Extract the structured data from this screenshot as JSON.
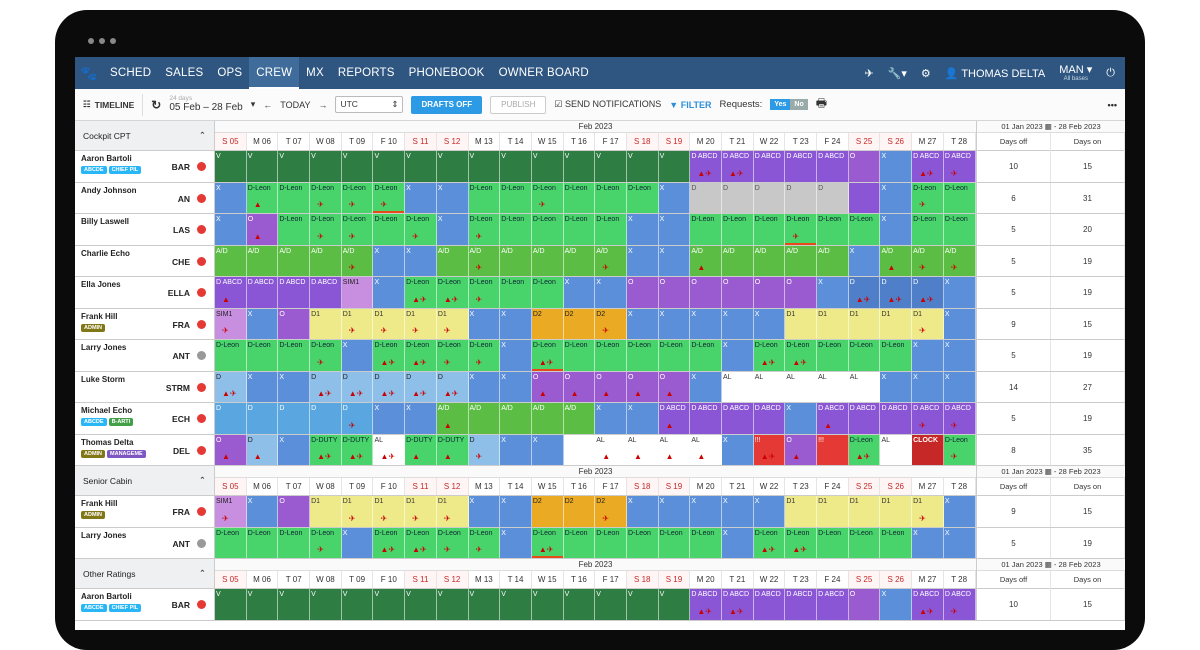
{
  "nav": {
    "items": [
      "SCHED",
      "SALES",
      "OPS",
      "CREW",
      "MX",
      "REPORTS",
      "PHONEBOOK",
      "OWNER BOARD"
    ],
    "active": "CREW",
    "user": "THOMAS DELTA",
    "base": "MAN",
    "base_sub": "All bases"
  },
  "toolbar": {
    "timeline_label": "TIMELINE",
    "range_days": "24 days",
    "range": "05 Feb – 28 Feb",
    "today": "TODAY",
    "timezone": "UTC",
    "drafts": "DRAFTS OFF",
    "publish": "PUBLISH",
    "send_notifications": "SEND NOTIFICATIONS",
    "filter": "FILTER",
    "requests_label": "Requests:",
    "yes": "Yes",
    "no": "No"
  },
  "month_label": "Feb 2023",
  "days": [
    "S 05",
    "M 06",
    "T 07",
    "W 08",
    "T 09",
    "F 10",
    "S 11",
    "S 12",
    "M 13",
    "T 14",
    "W 15",
    "T 16",
    "F 17",
    "S 18",
    "S 19",
    "M 20",
    "T 21",
    "W 22",
    "T 23",
    "F 24",
    "S 25",
    "S 26",
    "M 27",
    "T 28"
  ],
  "weekend_idx": [
    0,
    6,
    7,
    13,
    14,
    20,
    21
  ],
  "summary": {
    "range": "01 Jan 2023 ▦ - 28 Feb 2023",
    "off": "Days off",
    "on": "Days on"
  },
  "sections": [
    {
      "title": "Cockpit CPT",
      "rows": [
        {
          "name": "Aaron Bartoli",
          "code": "BAR",
          "dot": "red",
          "tags": [
            [
              "ABCDE",
              "t-abcde"
            ],
            [
              "CHIEF PIL",
              "t-chief"
            ]
          ],
          "off": "10",
          "on": "15",
          "cells": [
            "V|V",
            "V|V",
            "V|V",
            "V|V",
            "V|V",
            "V|V",
            "V|V",
            "V|V",
            "V|V",
            "V|V",
            "V|V",
            "V|V",
            "V|V",
            "V|V",
            "V|V",
            "DB|D ABCD|▲✈",
            "DB|D ABCD|▲✈",
            "DB|D ABCD",
            "DB|D ABCD",
            "DB|D ABCD",
            "O|O",
            "X|X",
            "DB|D ABCD|▲✈",
            "DB|D ABCD|✈"
          ]
        },
        {
          "name": "Andy Johnson",
          "code": "AN",
          "dot": "red",
          "tags": [],
          "off": "6",
          "on": "31",
          "cells": [
            "X|X",
            "DL|D-Leon|▲",
            "DL|D-Leon",
            "DL|D-Leon|✈",
            "DL|D-Leon|✈",
            "DL|D-Leon|✈|u",
            "X|X",
            "X|X",
            "DL|D-Leon",
            "DL|D-Leon",
            "DL|D-Leon|✈",
            "DL|D-Leon",
            "DL|D-Leon",
            "DL|D-Leon",
            "X|X",
            "GR|D",
            "GR|D",
            "GR|D",
            "GR|D",
            "GR|D",
            "DB|",
            "X|X",
            "DL|D-Leon|✈",
            "DL|D-Leon"
          ]
        },
        {
          "name": "Billy Laswell",
          "code": "LAS",
          "dot": "red",
          "tags": [],
          "off": "5",
          "on": "20",
          "cells": [
            "X|X",
            "O|O|▲",
            "DL|D-Leon",
            "DL|D-Leon|✈",
            "DL|D-Leon|✈",
            "DL|D-Leon",
            "DL|D-Leon|✈",
            "X|X",
            "DL|D-Leon|✈",
            "DL|D-Leon",
            "DL|D-Leon",
            "DL|D-Leon",
            "DL|D-Leon",
            "X|X",
            "X|X",
            "DL|D-Leon",
            "DL|D-Leon",
            "DL|D-Leon",
            "DL|D-Leon|✈|u",
            "DL|D-Leon",
            "DL|D-Leon",
            "X|X",
            "DL|D-Leon",
            "DL|D-Leon"
          ]
        },
        {
          "name": "Charlie Echo",
          "code": "CHE",
          "dot": "red",
          "tags": [],
          "off": "5",
          "on": "19",
          "cells": [
            "AD|A/D",
            "AD|A/D",
            "AD|A/D",
            "AD|A/D",
            "AD|A/D|✈",
            "X|X",
            "X|X",
            "AD|A/D",
            "AD|A/D|✈",
            "AD|A/D",
            "AD|A/D",
            "AD|A/D",
            "AD|A/D|✈",
            "X|X",
            "X|X",
            "AD|A/D|▲",
            "AD|A/D",
            "AD|A/D",
            "AD|A/D",
            "AD|A/D",
            "X|X",
            "AD|A/D|▲",
            "AD|A/D|✈",
            "AD|A/D|✈"
          ]
        },
        {
          "name": "Ella Jones",
          "code": "ELLA",
          "dot": "red",
          "tags": [],
          "off": "5",
          "on": "19",
          "cells": [
            "DB|D ABCD|▲",
            "DB|D ABCD",
            "DB|D ABCD",
            "DB|D ABCD",
            "SIM|SIM1",
            "X|X",
            "DL|D-Leon|▲✈",
            "DL|D-Leon|▲✈",
            "DL|D-Leon|✈",
            "DL|D-Leon",
            "DL|D-Leon",
            "X|X",
            "X|X",
            "O|O",
            "O|O",
            "O|O",
            "O|O",
            "O|O",
            "O|O",
            "X|X",
            "DD|D|▲✈",
            "DD|D|▲✈",
            "DD|D|▲✈",
            "X|X"
          ]
        },
        {
          "name": "Frank Hill",
          "code": "FRA",
          "dot": "red",
          "tags": [
            [
              "ADMIN",
              "t-admin"
            ]
          ],
          "off": "9",
          "on": "15",
          "cells": [
            "SIM|SIM1|✈",
            "X|X",
            "O|O",
            "D1|D1",
            "D1|D1|✈",
            "D1|D1|✈",
            "D1|D1|✈",
            "D1|D1|✈",
            "X|X",
            "X|X",
            "D2|D2",
            "D2|D2",
            "D2|D2|✈",
            "X|X",
            "X|X",
            "X|X",
            "X|X",
            "X|X",
            "D1|D1",
            "D1|D1",
            "D1|D1",
            "D1|D1",
            "D1|D1|✈",
            "X|X"
          ]
        },
        {
          "name": "Larry Jones",
          "code": "ANT",
          "dot": "gray",
          "tags": [],
          "off": "5",
          "on": "19",
          "cells": [
            "DL|D-Leon",
            "DL|D-Leon",
            "DL|D-Leon",
            "DL|D-Leon|✈",
            "X|X",
            "DL|D-Leon|▲✈",
            "DL|D-Leon|▲✈",
            "DL|D-Leon|✈",
            "DL|D-Leon|✈",
            "X|X",
            "DL|D-Leon|▲✈|u",
            "DL|D-Leon",
            "DL|D-Leon",
            "DL|D-Leon",
            "DL|D-Leon",
            "DL|D-Leon",
            "X|X",
            "DL|D-Leon|▲✈",
            "DL|D-Leon|▲✈",
            "DL|D-Leon",
            "DL|D-Leon",
            "DL|D-Leon",
            "X|X",
            "X|X"
          ]
        },
        {
          "name": "Luke Storm",
          "code": "STRM",
          "dot": "red",
          "tags": [],
          "off": "14",
          "on": "27",
          "cells": [
            "DT|D|▲✈",
            "X|X",
            "X|X",
            "DT|D|▲✈",
            "DT|D|▲✈",
            "DT|D|▲✈",
            "DT|D|▲✈",
            "DT|D|▲✈",
            "X|X",
            "X|X",
            "O|O|▲",
            "O|O|▲",
            "O|O|▲",
            "O|O|▲",
            "O|O|▲",
            "X|X",
            "AL|AL",
            "AL|AL",
            "AL|AL",
            "AL|AL",
            "AL|AL",
            "X|X",
            "X|X",
            "X|X"
          ]
        },
        {
          "name": "Michael Echo",
          "code": "ECH",
          "dot": "red",
          "tags": [
            [
              "ABCDE",
              "t-abcde"
            ],
            [
              "B-ARTI",
              "t-bart"
            ]
          ],
          "off": "5",
          "on": "19",
          "cells": [
            "D|D",
            "D|D",
            "D|D",
            "D|D",
            "D|D|✈",
            "X|X",
            "X|X",
            "AD|A/D|▲",
            "AD|A/D",
            "AD|A/D",
            "AD|A/D",
            "AD|A/D",
            "X|X",
            "X|X",
            "DB|D ABCD|▲",
            "DB|D ABCD",
            "DB|D ABCD",
            "DB|D ABCD",
            "X|X",
            "DB|D ABCD|▲",
            "DB|D ABCD",
            "DB|D ABCD",
            "DB|D ABCD|✈",
            "DB|D ABCD|✈"
          ]
        },
        {
          "name": "Thomas Delta",
          "code": "DEL",
          "dot": "red",
          "tags": [
            [
              "ADMIN",
              "t-admin"
            ],
            [
              "MANAGEME",
              "t-mgmt"
            ]
          ],
          "off": "8",
          "on": "35",
          "cells": [
            "O|O|▲",
            "DT|D|▲",
            "X|X",
            "DL|D-DUTY|▲✈",
            "DL|D-DUTY|▲✈",
            "AL|AL|▲✈",
            "DL|D-DUTY|▲",
            "DL|D-DUTY|▲",
            "DT|D|✈",
            "X|X",
            "X|X",
            "AL|",
            "AL|AL|▲",
            "AL|AL|▲",
            "AL|AL|▲",
            "AL|AL|▲",
            "X|X",
            "EX|!!!|▲✈",
            "O|O|▲",
            "EX|!!!",
            "DL|D-Leon|▲✈",
            "AL|AL",
            "CL|CLOCK",
            "DL|D-Leon|✈"
          ]
        }
      ]
    },
    {
      "title": "Senior Cabin",
      "rows": [
        {
          "name": "Frank Hill",
          "code": "FRA",
          "dot": "red",
          "tags": [
            [
              "ADMIN",
              "t-admin"
            ]
          ],
          "off": "9",
          "on": "15",
          "cells": [
            "SIM|SIM1|✈",
            "X|X",
            "O|O",
            "D1|D1",
            "D1|D1|✈",
            "D1|D1|✈",
            "D1|D1|✈",
            "D1|D1|✈",
            "X|X",
            "X|X",
            "D2|D2",
            "D2|D2",
            "D2|D2|✈",
            "X|X",
            "X|X",
            "X|X",
            "X|X",
            "X|X",
            "D1|D1",
            "D1|D1",
            "D1|D1",
            "D1|D1",
            "D1|D1|✈",
            "X|X"
          ]
        },
        {
          "name": "Larry Jones",
          "code": "ANT",
          "dot": "gray",
          "tags": [],
          "off": "5",
          "on": "19",
          "cells": [
            "DL|D-Leon",
            "DL|D-Leon",
            "DL|D-Leon",
            "DL|D-Leon|✈",
            "X|X",
            "DL|D-Leon|▲✈",
            "DL|D-Leon|▲✈",
            "DL|D-Leon|✈",
            "DL|D-Leon|✈",
            "X|X",
            "DL|D-Leon|▲✈|u",
            "DL|D-Leon",
            "DL|D-Leon",
            "DL|D-Leon",
            "DL|D-Leon",
            "DL|D-Leon",
            "X|X",
            "DL|D-Leon|▲✈",
            "DL|D-Leon|▲✈",
            "DL|D-Leon",
            "DL|D-Leon",
            "DL|D-Leon",
            "X|X",
            "X|X"
          ]
        }
      ]
    },
    {
      "title": "Other Ratings",
      "rows": [
        {
          "name": "Aaron Bartoli",
          "code": "BAR",
          "dot": "red",
          "tags": [
            [
              "ABCDE",
              "t-abcde"
            ],
            [
              "CHIEF PIL",
              "t-chief"
            ]
          ],
          "off": "10",
          "on": "15",
          "cells": [
            "V|V",
            "V|V",
            "V|V",
            "V|V",
            "V|V",
            "V|V",
            "V|V",
            "V|V",
            "V|V",
            "V|V",
            "V|V",
            "V|V",
            "V|V",
            "V|V",
            "V|V",
            "DB|D ABCD|▲✈",
            "DB|D ABCD|▲✈",
            "DB|D ABCD",
            "DB|D ABCD",
            "DB|D ABCD",
            "O|O",
            "X|X",
            "DB|D ABCD|▲✈",
            "DB|D ABCD|✈"
          ]
        }
      ]
    }
  ]
}
